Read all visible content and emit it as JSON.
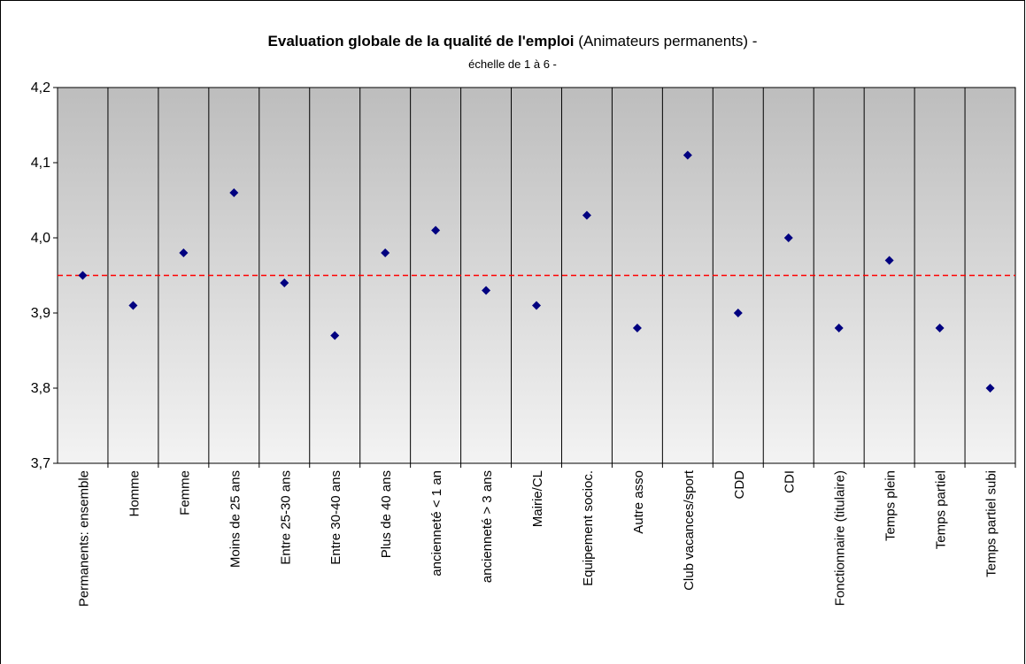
{
  "chart_data": {
    "type": "scatter",
    "title": "Evaluation globale de la qualité de l'emploi",
    "title_suffix": "(Animateurs permanents) -",
    "subtitle": "échelle de 1 à 6 -",
    "categories": [
      "Permanents: ensemble",
      "Homme",
      "Femme",
      "Moins de 25 ans",
      "Entre 25-30 ans",
      "Entre 30-40 ans",
      "Plus de 40 ans",
      "ancienneté < 1 an",
      "ancienneté > 3 ans",
      "Mairie/CL",
      "Equipement socioc.",
      "Autre asso",
      "Club vacances/sport",
      "CDD",
      "CDI",
      "Fonctionnaire (titulaire)",
      "Temps plein",
      "Temps partiel",
      "Temps partiel subi"
    ],
    "values": [
      3.95,
      3.91,
      3.98,
      4.06,
      3.94,
      3.87,
      3.98,
      4.01,
      3.93,
      3.91,
      4.03,
      3.88,
      4.11,
      3.9,
      4.0,
      3.88,
      3.97,
      3.88,
      3.8
    ],
    "color": "#000080",
    "reference_line": 3.95,
    "reference_color": "#ff0000",
    "ylim": [
      3.7,
      4.2
    ],
    "yticks": [
      {
        "value": 3.7,
        "label": "3,7"
      },
      {
        "value": 3.8,
        "label": "3,8"
      },
      {
        "value": 3.9,
        "label": "3,9"
      },
      {
        "value": 4.0,
        "label": "4,0"
      },
      {
        "value": 4.1,
        "label": "4,1"
      },
      {
        "value": 4.2,
        "label": "4,2"
      }
    ],
    "grid": true
  }
}
